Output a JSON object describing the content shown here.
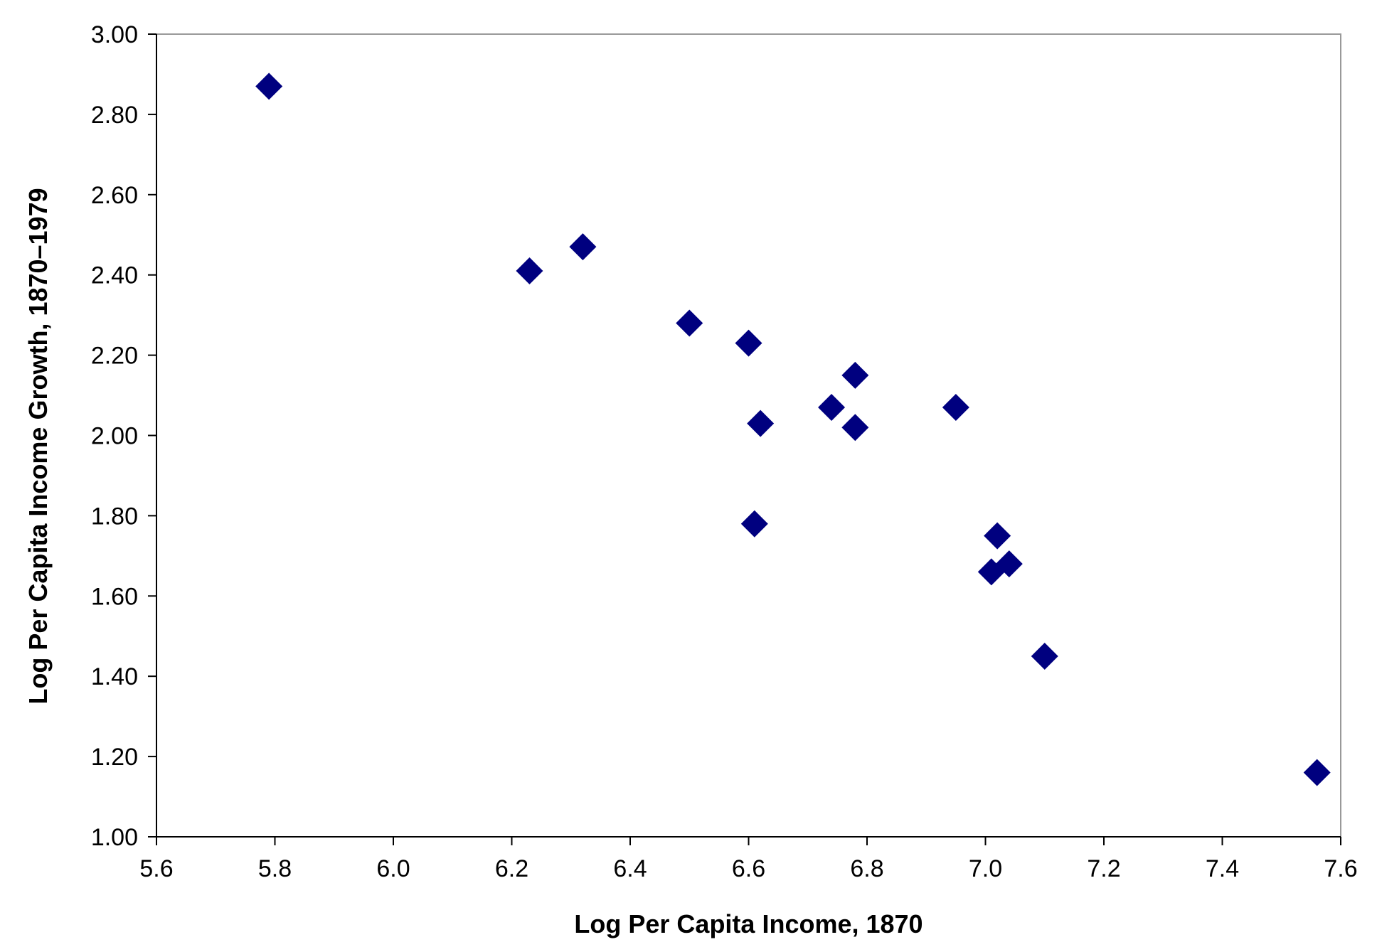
{
  "chart_data": {
    "type": "scatter",
    "title": "",
    "xlabel": "Log Per Capita Income, 1870",
    "ylabel": "Log Per Capita Income Growth, 1870–1979",
    "xlim": [
      5.6,
      7.6
    ],
    "ylim": [
      1.0,
      3.0
    ],
    "x_ticks": [
      "5.6",
      "5.8",
      "6.0",
      "6.2",
      "6.4",
      "6.6",
      "6.8",
      "7.0",
      "7.2",
      "7.4",
      "7.6"
    ],
    "y_ticks": [
      "1.00",
      "1.20",
      "1.40",
      "1.60",
      "1.80",
      "2.00",
      "2.20",
      "2.40",
      "2.60",
      "2.80",
      "3.00"
    ],
    "grid": false,
    "legend": "none",
    "marker": "diamond",
    "marker_color": "#00007f",
    "points": [
      {
        "x": 5.79,
        "y": 2.87
      },
      {
        "x": 6.23,
        "y": 2.41
      },
      {
        "x": 6.32,
        "y": 2.47
      },
      {
        "x": 6.5,
        "y": 2.28
      },
      {
        "x": 6.6,
        "y": 2.23
      },
      {
        "x": 6.62,
        "y": 2.03
      },
      {
        "x": 6.61,
        "y": 1.78
      },
      {
        "x": 6.74,
        "y": 2.07
      },
      {
        "x": 6.78,
        "y": 2.15
      },
      {
        "x": 6.78,
        "y": 2.02
      },
      {
        "x": 6.95,
        "y": 2.07
      },
      {
        "x": 7.02,
        "y": 1.75
      },
      {
        "x": 7.01,
        "y": 1.66
      },
      {
        "x": 7.04,
        "y": 1.68
      },
      {
        "x": 7.1,
        "y": 1.45
      },
      {
        "x": 7.56,
        "y": 1.16
      }
    ]
  }
}
